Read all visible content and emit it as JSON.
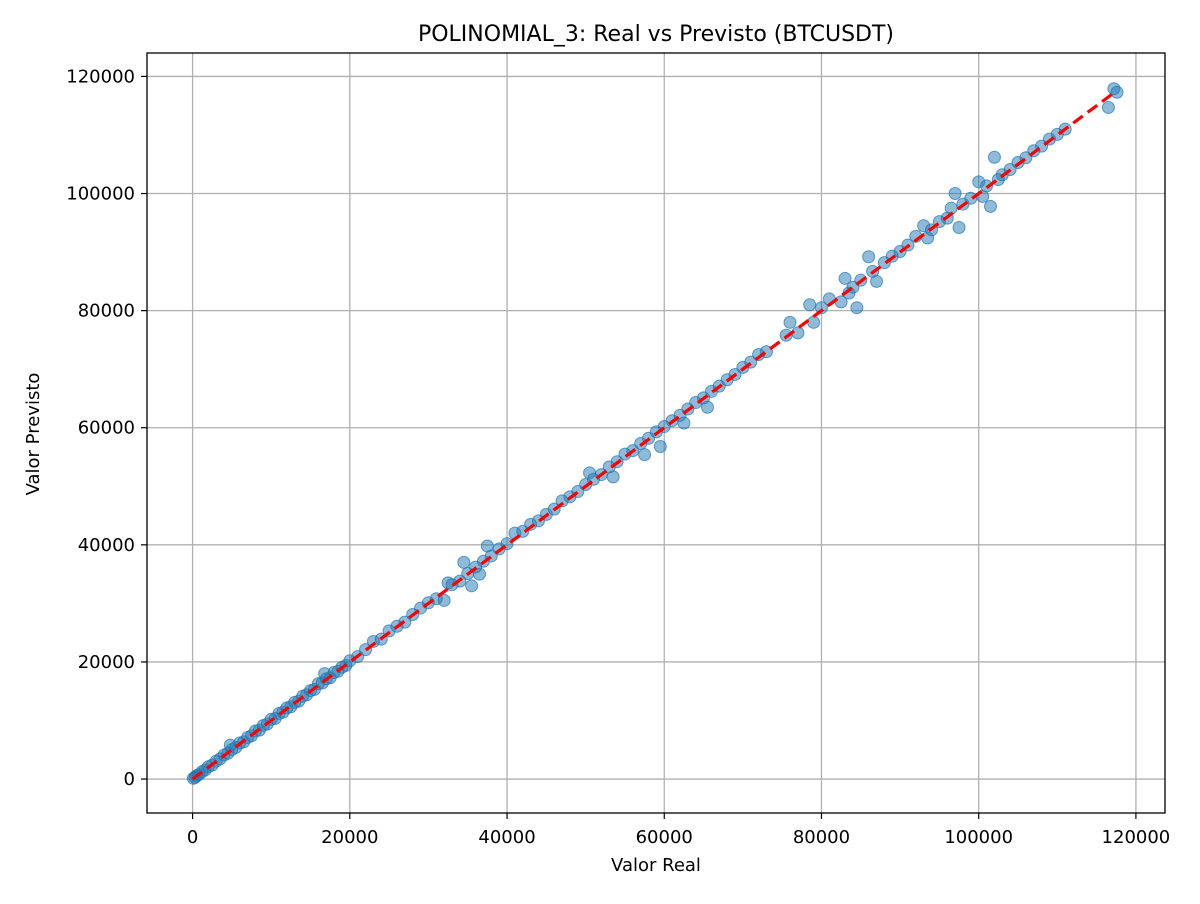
{
  "chart_data": {
    "type": "scatter",
    "title": "POLINOMIAL_3: Real vs Previsto (BTCUSDT)",
    "xlabel": "Valor Real",
    "ylabel": "Valor Previsto",
    "xlim": [
      -5800,
      123700
    ],
    "ylim": [
      -5800,
      124000
    ],
    "xticks": [
      0,
      20000,
      40000,
      60000,
      80000,
      100000,
      120000
    ],
    "yticks": [
      0,
      20000,
      40000,
      60000,
      80000,
      100000,
      120000
    ],
    "grid": true,
    "marker_color": "#1f77b4",
    "marker_alpha": 0.5,
    "reference_line": {
      "x": [
        0,
        117500
      ],
      "y": [
        0,
        117500
      ],
      "color": "#ff0000",
      "style": "dashed"
    },
    "series": [
      {
        "points": [
          [
            100,
            120
          ],
          [
            300,
            280
          ],
          [
            500,
            560
          ],
          [
            800,
            760
          ],
          [
            1200,
            1250
          ],
          [
            1600,
            1550
          ],
          [
            2000,
            2100
          ],
          [
            2500,
            2400
          ],
          [
            3000,
            3050
          ],
          [
            3500,
            3450
          ],
          [
            4000,
            4100
          ],
          [
            4500,
            4400
          ],
          [
            4800,
            5800
          ],
          [
            5000,
            5050
          ],
          [
            5500,
            5400
          ],
          [
            6000,
            6150
          ],
          [
            6500,
            6350
          ],
          [
            7000,
            7100
          ],
          [
            7500,
            7400
          ],
          [
            8000,
            8200
          ],
          [
            8500,
            8350
          ],
          [
            9000,
            9150
          ],
          [
            9500,
            9400
          ],
          [
            10000,
            10200
          ],
          [
            10500,
            10350
          ],
          [
            11000,
            11200
          ],
          [
            11500,
            11400
          ],
          [
            12000,
            12150
          ],
          [
            12500,
            12350
          ],
          [
            13000,
            13100
          ],
          [
            13500,
            13300
          ],
          [
            14000,
            14150
          ],
          [
            14500,
            14400
          ],
          [
            15000,
            15100
          ],
          [
            15500,
            15300
          ],
          [
            16000,
            16300
          ],
          [
            16500,
            16400
          ],
          [
            16800,
            18000
          ],
          [
            17000,
            17100
          ],
          [
            17500,
            17300
          ],
          [
            18000,
            18200
          ],
          [
            18500,
            18400
          ],
          [
            19000,
            19100
          ],
          [
            19500,
            19400
          ],
          [
            20000,
            20200
          ],
          [
            21000,
            20900
          ],
          [
            22000,
            22100
          ],
          [
            23000,
            23500
          ],
          [
            24000,
            23900
          ],
          [
            25000,
            25300
          ],
          [
            26000,
            26100
          ],
          [
            27000,
            26800
          ],
          [
            28000,
            28100
          ],
          [
            29000,
            29200
          ],
          [
            30000,
            30100
          ],
          [
            31000,
            30800
          ],
          [
            32000,
            30500
          ],
          [
            32500,
            33500
          ],
          [
            33000,
            33200
          ],
          [
            34000,
            33800
          ],
          [
            34500,
            37000
          ],
          [
            35000,
            35100
          ],
          [
            35500,
            33000
          ],
          [
            36000,
            36200
          ],
          [
            36500,
            35000
          ],
          [
            37000,
            37200
          ],
          [
            37500,
            39800
          ],
          [
            38000,
            38100
          ],
          [
            39000,
            39300
          ],
          [
            40000,
            40200
          ],
          [
            41000,
            42000
          ],
          [
            42000,
            42300
          ],
          [
            43000,
            43500
          ],
          [
            44000,
            44100
          ],
          [
            45000,
            45200
          ],
          [
            46000,
            46100
          ],
          [
            47000,
            47500
          ],
          [
            48000,
            48200
          ],
          [
            49000,
            49100
          ],
          [
            50000,
            50300
          ],
          [
            50500,
            52300
          ],
          [
            51000,
            51200
          ],
          [
            52000,
            52000
          ],
          [
            53000,
            53300
          ],
          [
            53500,
            51600
          ],
          [
            54000,
            54200
          ],
          [
            55000,
            55500
          ],
          [
            56000,
            56100
          ],
          [
            57000,
            57300
          ],
          [
            57500,
            55400
          ],
          [
            58000,
            58200
          ],
          [
            59000,
            59300
          ],
          [
            59500,
            56800
          ],
          [
            60000,
            60200
          ],
          [
            61000,
            61200
          ],
          [
            62000,
            62100
          ],
          [
            62500,
            60800
          ],
          [
            63000,
            63200
          ],
          [
            64000,
            64300
          ],
          [
            65000,
            65100
          ],
          [
            65500,
            63500
          ],
          [
            66000,
            66200
          ],
          [
            67000,
            67100
          ],
          [
            68000,
            68200
          ],
          [
            69000,
            69100
          ],
          [
            70000,
            70300
          ],
          [
            71000,
            71200
          ],
          [
            72000,
            72500
          ],
          [
            73000,
            73000
          ],
          [
            75500,
            75800
          ],
          [
            76000,
            78000
          ],
          [
            77000,
            76200
          ],
          [
            78500,
            81000
          ],
          [
            79000,
            78000
          ],
          [
            80000,
            80500
          ],
          [
            81000,
            82000
          ],
          [
            82500,
            81500
          ],
          [
            83000,
            85500
          ],
          [
            83500,
            83000
          ],
          [
            84000,
            84000
          ],
          [
            84500,
            80500
          ],
          [
            85000,
            85200
          ],
          [
            86000,
            89200
          ],
          [
            86500,
            86700
          ],
          [
            87000,
            85000
          ],
          [
            88000,
            88200
          ],
          [
            89000,
            89300
          ],
          [
            90000,
            90100
          ],
          [
            91000,
            91200
          ],
          [
            92000,
            92700
          ],
          [
            93000,
            94500
          ],
          [
            93500,
            92400
          ],
          [
            94000,
            93800
          ],
          [
            95000,
            95200
          ],
          [
            96000,
            95800
          ],
          [
            96500,
            97500
          ],
          [
            97000,
            100000
          ],
          [
            97500,
            94200
          ],
          [
            98000,
            98200
          ],
          [
            99000,
            99200
          ],
          [
            100000,
            102000
          ],
          [
            100500,
            99500
          ],
          [
            101000,
            101300
          ],
          [
            101500,
            97800
          ],
          [
            102000,
            106200
          ],
          [
            102500,
            102400
          ],
          [
            103000,
            103200
          ],
          [
            104000,
            104100
          ],
          [
            105000,
            105300
          ],
          [
            106000,
            106100
          ],
          [
            107000,
            107300
          ],
          [
            108000,
            108100
          ],
          [
            109000,
            109300
          ],
          [
            110000,
            110100
          ],
          [
            111000,
            111000
          ],
          [
            116500,
            114700
          ],
          [
            117200,
            117900
          ],
          [
            117600,
            117300
          ]
        ]
      }
    ]
  }
}
